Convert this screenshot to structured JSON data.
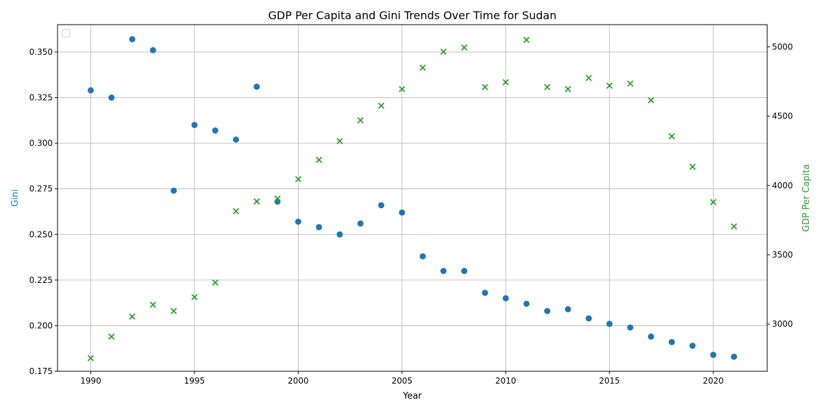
{
  "chart_data": {
    "type": "scatter",
    "title": "GDP Per Capita and Gini Trends Over Time for Sudan",
    "xlabel": "Year",
    "ylabel_left": "Gini",
    "ylabel_right": "GDP Per Capita",
    "xlim": [
      1988.4,
      2022.6
    ],
    "ylim_left": [
      0.175,
      0.365
    ],
    "ylim_right": [
      2660,
      5160
    ],
    "x_ticks": [
      1990,
      1995,
      2000,
      2005,
      2010,
      2015,
      2020
    ],
    "y_ticks_left": [
      0.175,
      0.2,
      0.225,
      0.25,
      0.275,
      0.3,
      0.325,
      0.35
    ],
    "y_ticks_left_labels": [
      "0.175",
      "0.200",
      "0.225",
      "0.250",
      "0.275",
      "0.300",
      "0.325",
      "0.350"
    ],
    "y_ticks_right": [
      3000,
      3500,
      4000,
      4500,
      5000
    ],
    "grid": true,
    "legend": "top-left (empty)",
    "colors": {
      "gini": "#1f77b4",
      "gdp": "#2ca02c"
    },
    "x": [
      1990,
      1991,
      1992,
      1993,
      1994,
      1995,
      1996,
      1997,
      1998,
      1999,
      2000,
      2001,
      2002,
      2003,
      2004,
      2005,
      2006,
      2007,
      2008,
      2009,
      2010,
      2011,
      2012,
      2013,
      2014,
      2015,
      2016,
      2017,
      2018,
      2019,
      2020,
      2021
    ],
    "series": [
      {
        "name": "Gini",
        "axis": "left",
        "marker": "circle",
        "values": [
          0.329,
          0.325,
          0.357,
          0.351,
          0.274,
          0.31,
          0.307,
          0.302,
          0.331,
          0.268,
          0.257,
          0.254,
          0.25,
          0.256,
          0.266,
          0.262,
          0.238,
          0.23,
          0.23,
          0.218,
          0.215,
          0.212,
          0.208,
          0.209,
          0.204,
          0.201,
          0.199,
          0.194,
          0.191,
          0.189,
          0.184,
          0.183
        ]
      },
      {
        "name": "GDP Per Capita",
        "axis": "right",
        "marker": "x",
        "values": [
          2755,
          2910,
          3055,
          3140,
          3095,
          3195,
          3300,
          3815,
          3885,
          3905,
          4045,
          4185,
          4320,
          4470,
          4575,
          4695,
          4850,
          4965,
          4995,
          4710,
          4745,
          5050,
          4710,
          4695,
          4775,
          4720,
          4735,
          4615,
          4355,
          4135,
          3880,
          3705
        ]
      }
    ]
  }
}
